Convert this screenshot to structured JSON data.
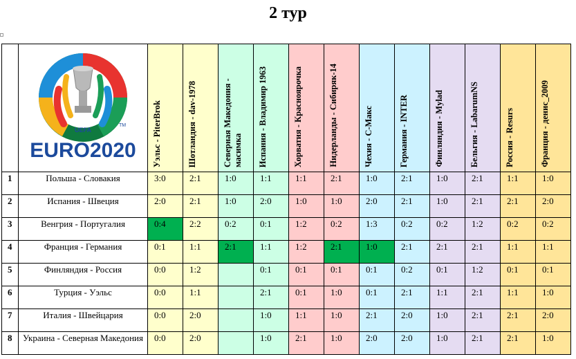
{
  "title": "2 тур",
  "logo": {
    "brand": "UEFA",
    "text": "EURO2020",
    "tm": "TM"
  },
  "colors": {
    "yellow": "#ffffcc",
    "green": "#ccffe5",
    "pink": "#ffcccc",
    "cyan": "#ccf2ff",
    "lavender": "#e5dcf2",
    "orange": "#ffe599",
    "highlight": "#00b050"
  },
  "participants": [
    {
      "name": "Уэльс - PiterBrok",
      "color": "yellow"
    },
    {
      "name": "Шотландия - dav-1978",
      "color": "yellow"
    },
    {
      "name": "Северная Македония - масимка",
      "color": "green"
    },
    {
      "name": "Испания - Владимир 1963",
      "color": "green"
    },
    {
      "name": "Хорватия - Красноярочка",
      "color": "pink"
    },
    {
      "name": "Нидерланды - Сибиряк-14",
      "color": "pink"
    },
    {
      "name": "Чехия - С-Макс",
      "color": "cyan"
    },
    {
      "name": "Германия - INTER",
      "color": "cyan"
    },
    {
      "name": "Финляндия - Mylad",
      "color": "lavender"
    },
    {
      "name": "Бельгия - LabarumNS",
      "color": "lavender"
    },
    {
      "name": "Россия - Resurs",
      "color": "orange"
    },
    {
      "name": "Франция - денис_2009",
      "color": "orange"
    }
  ],
  "rows": [
    {
      "num": "1",
      "match": "Польша - Словакия",
      "scores": [
        "3:0",
        "2:1",
        "1:0",
        "1:1",
        "1:1",
        "2:1",
        "1:0",
        "2:1",
        "1:0",
        "2:1",
        "1:1",
        "1:0"
      ]
    },
    {
      "num": "2",
      "match": "Испания - Швеция",
      "scores": [
        "2:0",
        "2:1",
        "1:0",
        "2:0",
        "1:0",
        "1:0",
        "2:0",
        "2:1",
        "1:0",
        "2:1",
        "2:1",
        "2:0"
      ]
    },
    {
      "num": "3",
      "match": "Венгрия - Португалия",
      "scores": [
        "0:4",
        "2:2",
        "0:2",
        "0:1",
        "1:2",
        "0:2",
        "1:3",
        "0:2",
        "0:2",
        "1:2",
        "0:2",
        "0:2"
      ],
      "highlight": [
        0
      ]
    },
    {
      "num": "4",
      "match": "Франция - Германия",
      "scores": [
        "0:1",
        "1:1",
        "2:1",
        "1:1",
        "1:2",
        "2:1",
        "1:0",
        "2:1",
        "2:1",
        "2:1",
        "1:1",
        "1:1"
      ],
      "highlight": [
        2,
        5,
        6
      ]
    },
    {
      "num": "5",
      "match": "Финляндия - Россия",
      "scores": [
        "0:0",
        "1:2",
        "",
        "0:1",
        "0:1",
        "0:1",
        "0:1",
        "0:2",
        "0:1",
        "1:2",
        "0:1",
        "0:1"
      ]
    },
    {
      "num": "6",
      "match": "Турция - Уэльс",
      "scores": [
        "0:0",
        "1:1",
        "",
        "2:1",
        "0:1",
        "1:0",
        "0:1",
        "2:1",
        "1:1",
        "2:1",
        "1:1",
        "1:0"
      ]
    },
    {
      "num": "7",
      "match": "Италия - Швейцария",
      "scores": [
        "0:0",
        "2:0",
        "",
        "1:0",
        "1:1",
        "1:0",
        "2:1",
        "2:0",
        "1:0",
        "2:1",
        "2:1",
        "2:0"
      ]
    },
    {
      "num": "8",
      "match": "Украина - Северная Македония",
      "scores": [
        "0:0",
        "2:0",
        "",
        "1:0",
        "2:1",
        "1:0",
        "2:0",
        "2:0",
        "1:0",
        "2:1",
        "2:1",
        "1:0"
      ]
    }
  ]
}
